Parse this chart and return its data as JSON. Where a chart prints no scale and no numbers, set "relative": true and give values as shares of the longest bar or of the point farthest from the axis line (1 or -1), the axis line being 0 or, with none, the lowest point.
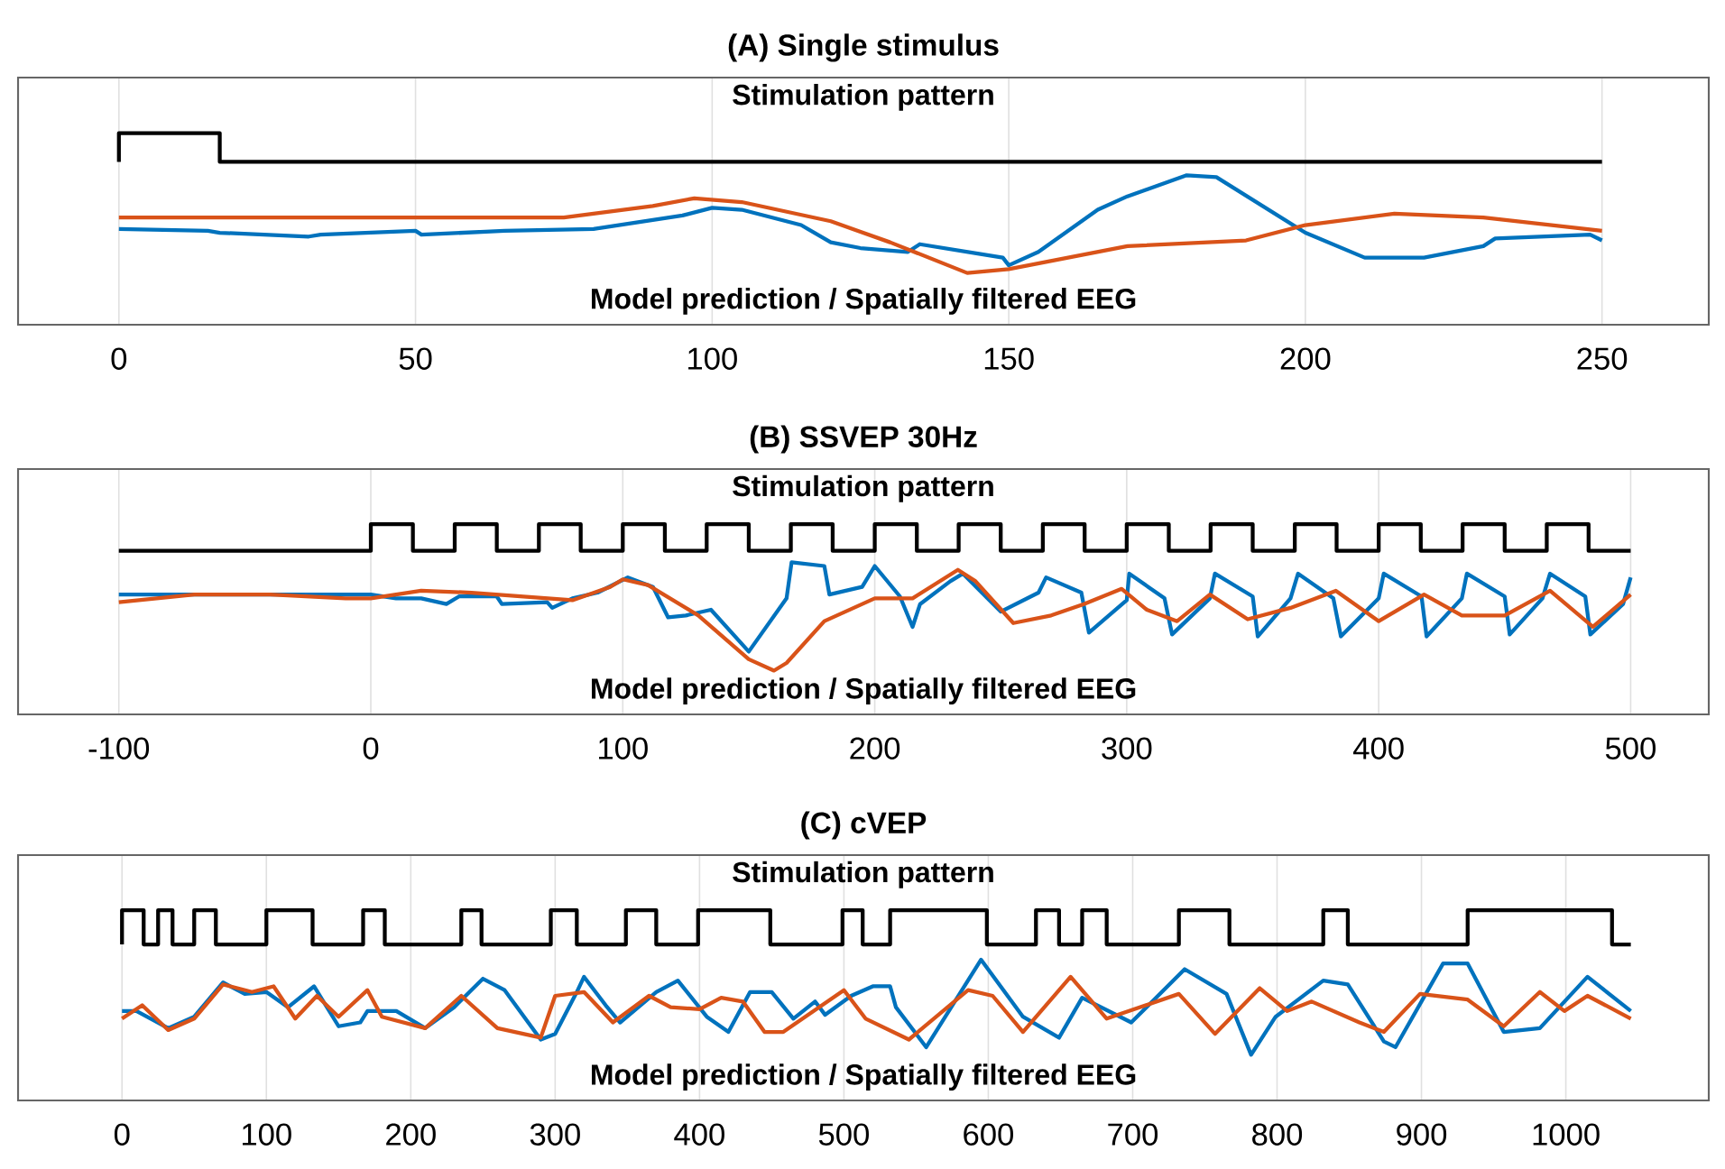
{
  "chart_data": [
    {
      "type": "line",
      "title": "(A) Single stimulus",
      "relative": true,
      "grid": "x",
      "xlim": [
        -17,
        268
      ],
      "xticks": [
        0,
        50,
        100,
        150,
        200,
        250
      ],
      "annotations": [
        "Stimulation pattern",
        "Model prediction / Spatially filtered EEG"
      ],
      "series": [
        {
          "type": "step",
          "color": "#000000",
          "x": [
            0,
            0,
            17,
            250
          ],
          "values": [
            0.85,
            1,
            0.85,
            0.85
          ]
        },
        {
          "color": "#0072bd",
          "x": [
            0,
            15,
            17,
            32,
            34,
            50,
            51,
            65,
            80,
            95,
            100,
            105,
            115,
            120,
            125,
            133,
            135,
            145,
            149,
            150,
            155,
            165,
            170,
            180,
            185,
            200,
            210,
            220,
            230,
            232,
            248,
            250
          ],
          "values": [
            0.5,
            0.49,
            0.48,
            0.46,
            0.47,
            0.49,
            0.47,
            0.49,
            0.5,
            0.57,
            0.61,
            0.6,
            0.52,
            0.43,
            0.4,
            0.38,
            0.42,
            0.37,
            0.35,
            0.31,
            0.38,
            0.6,
            0.67,
            0.78,
            0.77,
            0.48,
            0.35,
            0.35,
            0.41,
            0.45,
            0.47,
            0.44
          ]
        },
        {
          "color": "#d95319",
          "x": [
            0,
            50,
            75,
            90,
            97,
            105,
            120,
            130,
            143,
            150,
            170,
            190,
            200,
            215,
            230,
            250
          ],
          "values": [
            0.56,
            0.56,
            0.56,
            0.62,
            0.66,
            0.64,
            0.54,
            0.43,
            0.27,
            0.29,
            0.41,
            0.44,
            0.52,
            0.58,
            0.56,
            0.49
          ]
        }
      ]
    },
    {
      "type": "line",
      "title": "(B) SSVEP 30Hz",
      "relative": true,
      "grid": "x",
      "xlim": [
        -140,
        531
      ],
      "xticks": [
        -100,
        0,
        100,
        200,
        300,
        400,
        500
      ],
      "annotations": [
        "Stimulation pattern",
        "Model prediction / Spatially filtered EEG"
      ],
      "series": [
        {
          "type": "step",
          "color": "#000000",
          "x": [
            -100,
            0,
            16.7,
            33.3,
            50,
            66.7,
            83.3,
            100,
            116.7,
            133.3,
            150,
            166.7,
            183.3,
            200,
            216.7,
            233.3,
            250,
            266.7,
            283.3,
            300,
            316.7,
            333.3,
            350,
            366.7,
            383.3,
            400,
            416.7,
            433.3,
            450,
            466.7,
            483.3,
            500
          ],
          "values": [
            0.86,
            1,
            0.86,
            1,
            0.86,
            1,
            0.86,
            1,
            0.86,
            1,
            0.86,
            1,
            0.86,
            1,
            0.86,
            1,
            0.86,
            1,
            0.86,
            1,
            0.86,
            1,
            0.86,
            1,
            0.86,
            1,
            0.86,
            1,
            0.86,
            1,
            0.86,
            0.86
          ]
        },
        {
          "color": "#0072bd",
          "x": [
            -100,
            -20,
            0,
            10,
            20,
            30,
            35,
            50,
            52,
            70,
            72,
            80,
            90,
            102,
            112,
            118,
            125,
            135,
            150,
            165,
            167,
            180,
            182,
            195,
            200,
            210,
            215,
            218,
            230,
            235,
            250,
            265,
            268,
            282,
            285,
            300,
            301,
            315,
            318,
            333,
            335,
            350,
            352,
            365,
            368,
            382,
            385,
            400,
            402,
            417,
            419,
            433,
            435,
            450,
            452,
            465,
            468,
            482,
            484,
            497,
            500
          ],
          "values": [
            0.63,
            0.63,
            0.63,
            0.61,
            0.61,
            0.58,
            0.62,
            0.62,
            0.58,
            0.59,
            0.56,
            0.61,
            0.64,
            0.72,
            0.67,
            0.51,
            0.52,
            0.55,
            0.33,
            0.61,
            0.8,
            0.78,
            0.63,
            0.67,
            0.78,
            0.62,
            0.46,
            0.58,
            0.7,
            0.74,
            0.54,
            0.64,
            0.72,
            0.64,
            0.43,
            0.6,
            0.74,
            0.61,
            0.42,
            0.61,
            0.74,
            0.62,
            0.41,
            0.61,
            0.74,
            0.61,
            0.41,
            0.61,
            0.74,
            0.62,
            0.41,
            0.61,
            0.74,
            0.62,
            0.42,
            0.61,
            0.74,
            0.62,
            0.42,
            0.58,
            0.72
          ]
        },
        {
          "color": "#d95319",
          "x": [
            -100,
            -70,
            -40,
            -10,
            0,
            20,
            40,
            80,
            95,
            100,
            110,
            130,
            150,
            160,
            165,
            180,
            200,
            215,
            233,
            240,
            255,
            270,
            283,
            298,
            308,
            320,
            333,
            348,
            365,
            383,
            400,
            418,
            433,
            450,
            468,
            485,
            500
          ],
          "values": [
            0.59,
            0.63,
            0.63,
            0.61,
            0.61,
            0.65,
            0.64,
            0.6,
            0.67,
            0.71,
            0.68,
            0.52,
            0.29,
            0.23,
            0.27,
            0.49,
            0.61,
            0.61,
            0.76,
            0.7,
            0.48,
            0.52,
            0.58,
            0.66,
            0.55,
            0.49,
            0.63,
            0.5,
            0.56,
            0.65,
            0.49,
            0.63,
            0.52,
            0.52,
            0.65,
            0.46,
            0.63
          ]
        }
      ]
    },
    {
      "type": "line",
      "title": "(C) cVEP",
      "relative": true,
      "grid": "x",
      "xlim": [
        -72,
        1099
      ],
      "xticks": [
        0,
        100,
        200,
        300,
        400,
        500,
        600,
        700,
        800,
        900,
        1000
      ],
      "annotations": [
        "Stimulation pattern",
        "Model prediction / Spatially filtered EEG"
      ],
      "series": [
        {
          "type": "step",
          "color": "#000000",
          "x": [
            0,
            0,
            15,
            25,
            35,
            50,
            65,
            100,
            132,
            167,
            182,
            235,
            249,
            297,
            315,
            349,
            370,
            399,
            449,
            499,
            513,
            532,
            599,
            633,
            649,
            665,
            682,
            732,
            767,
            832,
            849,
            932,
            1032,
            1045
          ],
          "values": [
            0.82,
            1,
            0.82,
            1,
            0.82,
            1,
            0.82,
            1,
            0.82,
            1,
            0.82,
            1,
            0.82,
            1,
            0.82,
            1,
            0.82,
            1,
            0.82,
            1,
            0.82,
            1,
            0.82,
            1,
            0.82,
            1,
            0.82,
            1,
            0.82,
            1,
            0.82,
            1,
            0.82,
            0.82
          ]
        },
        {
          "color": "#0072bd",
          "x": [
            0,
            10,
            32,
            50,
            70,
            85,
            100,
            115,
            133,
            150,
            165,
            170,
            190,
            210,
            230,
            250,
            265,
            290,
            300,
            315,
            320,
            335,
            345,
            370,
            385,
            405,
            420,
            435,
            450,
            465,
            480,
            487,
            505,
            520,
            532,
            536,
            557,
            595,
            624,
            649,
            665,
            699,
            736,
            765,
            782,
            799,
            832,
            849,
            874,
            882,
            915,
            932,
            957,
            982,
            1015,
            1045
          ],
          "values": [
            0.47,
            0.47,
            0.38,
            0.44,
            0.62,
            0.56,
            0.57,
            0.49,
            0.6,
            0.39,
            0.41,
            0.47,
            0.47,
            0.38,
            0.49,
            0.64,
            0.58,
            0.32,
            0.35,
            0.57,
            0.65,
            0.5,
            0.41,
            0.57,
            0.63,
            0.44,
            0.36,
            0.57,
            0.57,
            0.43,
            0.52,
            0.45,
            0.55,
            0.6,
            0.6,
            0.49,
            0.28,
            0.74,
            0.44,
            0.33,
            0.54,
            0.41,
            0.69,
            0.56,
            0.24,
            0.44,
            0.63,
            0.61,
            0.31,
            0.28,
            0.72,
            0.72,
            0.36,
            0.38,
            0.65,
            0.47
          ]
        },
        {
          "color": "#d95319",
          "x": [
            0,
            14,
            32,
            50,
            70,
            90,
            105,
            120,
            135,
            150,
            170,
            180,
            210,
            235,
            260,
            290,
            300,
            320,
            340,
            365,
            380,
            400,
            415,
            430,
            445,
            458,
            500,
            515,
            545,
            586,
            603,
            624,
            657,
            682,
            732,
            757,
            788,
            807,
            824,
            857,
            874,
            899,
            932,
            957,
            982,
            999,
            1015,
            1045
          ],
          "values": [
            0.43,
            0.5,
            0.37,
            0.43,
            0.61,
            0.57,
            0.6,
            0.43,
            0.55,
            0.44,
            0.58,
            0.44,
            0.38,
            0.55,
            0.38,
            0.33,
            0.55,
            0.57,
            0.41,
            0.55,
            0.49,
            0.48,
            0.54,
            0.52,
            0.36,
            0.36,
            0.58,
            0.43,
            0.32,
            0.58,
            0.55,
            0.36,
            0.65,
            0.43,
            0.56,
            0.35,
            0.59,
            0.47,
            0.52,
            0.41,
            0.36,
            0.56,
            0.53,
            0.39,
            0.57,
            0.47,
            0.55,
            0.43
          ]
        }
      ]
    }
  ]
}
